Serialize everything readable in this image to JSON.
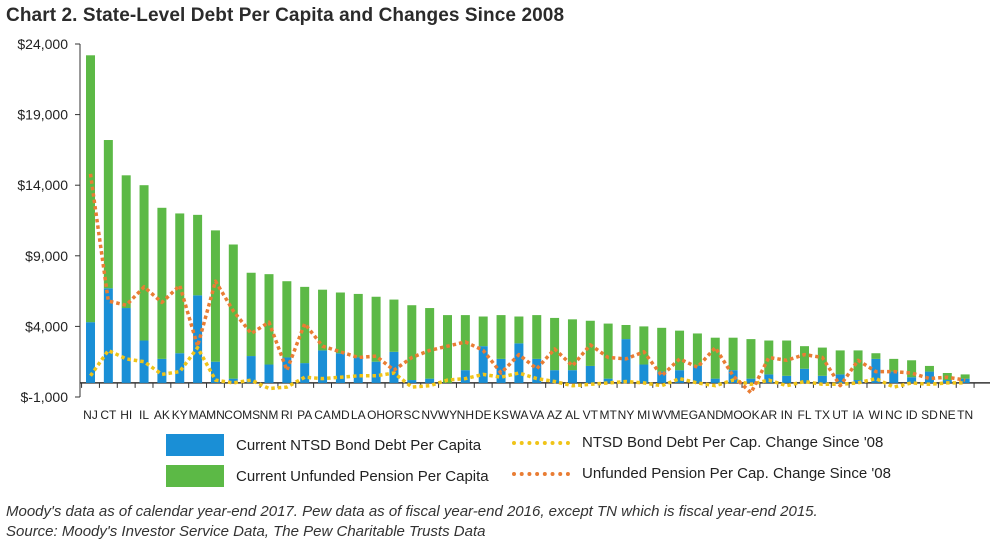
{
  "title": "Chart 2. State-Level Debt Per Capita and Changes Since 2008",
  "footnote": "Moody's data as of calendar year-end 2017. Pew data as of fiscal year-end 2016, except TN which is fiscal year-end 2015.",
  "source": "Source: Moody's Investor Service Data, The Pew Charitable Trusts Data",
  "colors": {
    "bond": "#1a8fd6",
    "pension": "#5cb946",
    "bond_change": "#f0c419",
    "pension_change": "#e97d34",
    "axis": "#333333"
  },
  "chart_data": {
    "type": "bar",
    "stacked": true,
    "title": "Chart 2. State-Level Debt Per Capita and Changes Since 2008",
    "xlabel": "",
    "ylabel": "",
    "ylim": [
      -1000,
      24000
    ],
    "yticks": [
      -1000,
      4000,
      9000,
      14000,
      19000,
      24000
    ],
    "ytick_labels": [
      "$-1,000",
      "$4,000",
      "$9,000",
      "$14,000",
      "$19,000",
      "$24,000"
    ],
    "categories": [
      "NJ",
      "CT",
      "HI",
      "IL",
      "AK",
      "KY",
      "MA",
      "MN",
      "CO",
      "MS",
      "NM",
      "RI",
      "PA",
      "CA",
      "MD",
      "LA",
      "OH",
      "OR",
      "SC",
      "NV",
      "WY",
      "NH",
      "DE",
      "KS",
      "WA",
      "VA",
      "AZ",
      "AL",
      "VT",
      "MT",
      "NY",
      "MI",
      "WV",
      "ME",
      "GA",
      "ND",
      "MO",
      "OK",
      "AR",
      "IN",
      "FL",
      "TX",
      "UT",
      "IA",
      "WI",
      "NC",
      "ID",
      "SD",
      "NE",
      "TN"
    ],
    "series": [
      {
        "name": "Current NTSD Bond Debt Per Capita",
        "kind": "bar",
        "values": [
          4300,
          6700,
          5300,
          3000,
          1700,
          2100,
          6200,
          1500,
          300,
          1900,
          1300,
          1800,
          1400,
          2300,
          2100,
          1800,
          1500,
          2200,
          200,
          300,
          0,
          900,
          2600,
          1700,
          2800,
          1700,
          900,
          900,
          1200,
          300,
          3100,
          1300,
          800,
          900,
          1200,
          300,
          900,
          300,
          600,
          500,
          1000,
          500,
          600,
          200,
          1700,
          800,
          400,
          800,
          200,
          300
        ]
      },
      {
        "name": "Current Unfunded Pension Per Capita",
        "kind": "bar",
        "values": [
          18900,
          10500,
          9400,
          11000,
          10700,
          9900,
          5700,
          9300,
          9500,
          5900,
          6400,
          5400,
          5400,
          4300,
          4300,
          4500,
          4600,
          3700,
          5300,
          5000,
          4800,
          3900,
          2100,
          3100,
          1900,
          3100,
          3700,
          3600,
          3200,
          3900,
          1000,
          2700,
          3100,
          2800,
          2300,
          2900,
          2300,
          2800,
          2400,
          2500,
          1600,
          2000,
          1700,
          2100,
          400,
          900,
          1200,
          400,
          500,
          300
        ]
      },
      {
        "name": "NTSD Bond Debt Per Cap. Change Since '08",
        "kind": "line",
        "values": [
          500,
          2300,
          1700,
          1500,
          600,
          800,
          2500,
          200,
          0,
          200,
          -400,
          -300,
          400,
          300,
          400,
          500,
          500,
          700,
          -300,
          -200,
          200,
          300,
          600,
          400,
          700,
          300,
          100,
          -200,
          -100,
          0,
          100,
          0,
          -200,
          300,
          0,
          -200,
          200,
          -100,
          200,
          -200,
          100,
          -100,
          -100,
          0,
          300,
          -300,
          0,
          -100,
          0,
          0
        ]
      },
      {
        "name": "Unfunded Pension Per Cap. Change Since '08",
        "kind": "line",
        "values": [
          14800,
          5800,
          5500,
          6800,
          5700,
          6900,
          2600,
          7200,
          5100,
          3500,
          4300,
          900,
          4200,
          2600,
          2200,
          1800,
          1900,
          900,
          1800,
          2300,
          2600,
          2900,
          2300,
          700,
          2000,
          1000,
          2400,
          1200,
          2700,
          1800,
          1700,
          2200,
          500,
          1700,
          1100,
          2500,
          500,
          -700,
          1800,
          1600,
          2000,
          1800,
          -200,
          1600,
          800,
          800,
          700,
          300,
          400,
          200
        ]
      }
    ],
    "legend": {
      "position": "bottom",
      "items": [
        "Current NTSD Bond Debt Per Capita",
        "NTSD Bond Debt Per Cap. Change Since '08",
        "Current Unfunded Pension Per Capita",
        "Unfunded Pension Per Cap. Change Since '08"
      ]
    }
  }
}
